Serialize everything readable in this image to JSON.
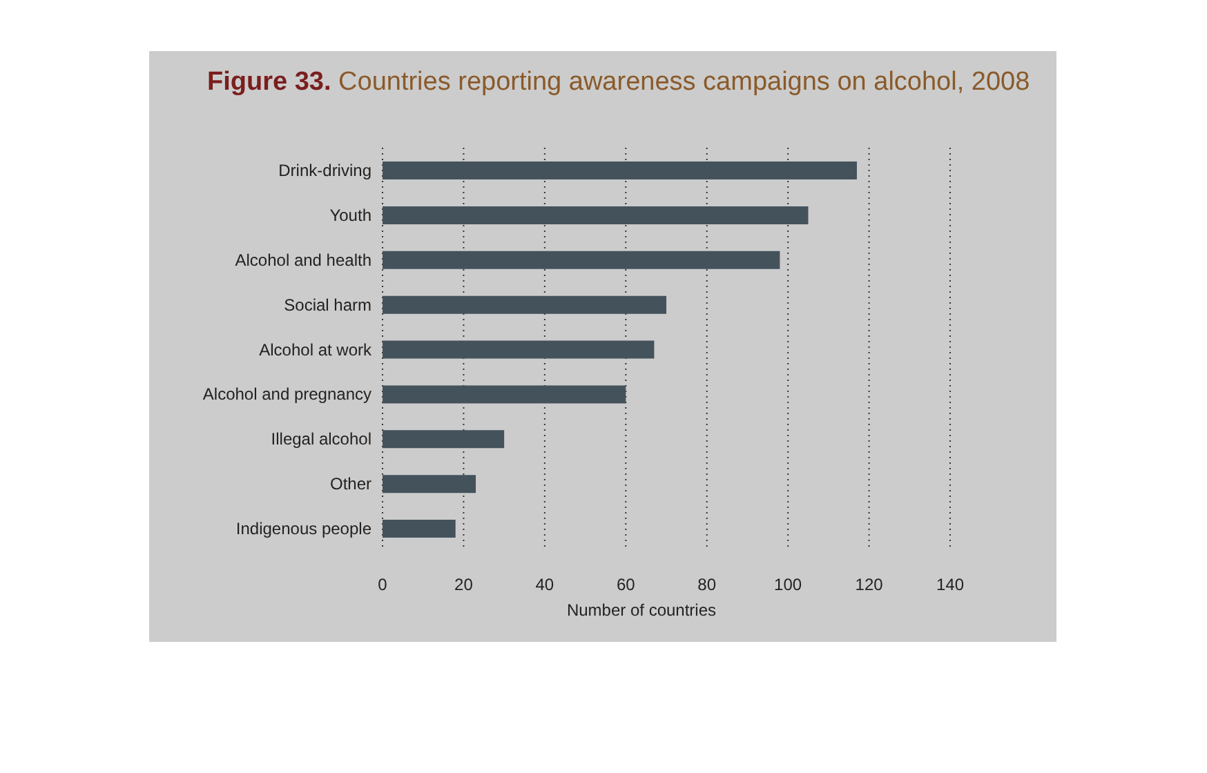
{
  "chart_data": {
    "type": "bar",
    "orientation": "horizontal",
    "title": "Figure 33. Countries reporting awareness campaigns on alcohol, 2008",
    "xlabel": "Number of countries",
    "categories": [
      "Drink-driving",
      "Youth",
      "Alcohol and health",
      "Social harm",
      "Alcohol at work",
      "Alcohol and pregnancy",
      "Illegal alcohol",
      "Other",
      "Indigenous people"
    ],
    "values": [
      117,
      105,
      98,
      70,
      67,
      60,
      30,
      23,
      18
    ],
    "color": "#44525c",
    "xlim": [
      0,
      140
    ],
    "xticks": [
      0,
      20,
      40,
      60,
      80,
      100,
      120,
      140
    ],
    "grid": "x"
  }
}
